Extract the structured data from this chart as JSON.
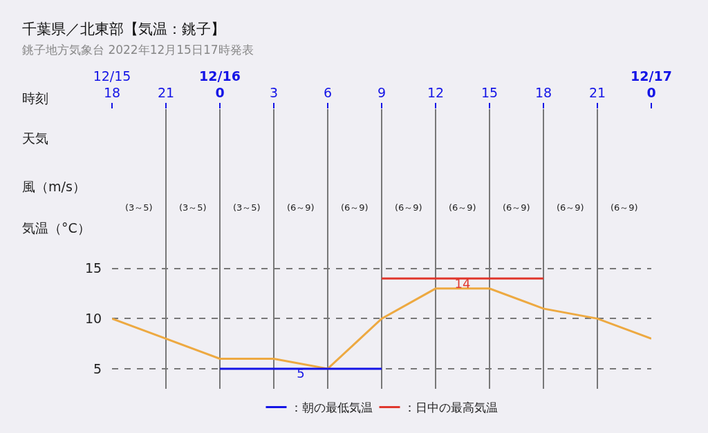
{
  "chart_data": {
    "type": "line",
    "title": "千葉県／北東部【気温：銚子】",
    "subtitle": "銚子地方気象台 2022年12月15日17時発表",
    "ylabel": "気温（°C）",
    "x": [
      "2022-12-15T18:00",
      "2022-12-15T21:00",
      "2022-12-16T00:00",
      "2022-12-16T03:00",
      "2022-12-16T06:00",
      "2022-12-16T09:00",
      "2022-12-16T12:00",
      "2022-12-16T15:00",
      "2022-12-16T18:00",
      "2022-12-16T21:00",
      "2022-12-17T00:00"
    ],
    "series": [
      {
        "color": "#eda941",
        "values": [
          10,
          8,
          6,
          6,
          5,
          10,
          13,
          13,
          11,
          10,
          8
        ]
      },
      {
        "name": "：朝の最低気温",
        "color": "#1414e6",
        "x": [
          "2022-12-16T00:00",
          "2022-12-16T04:30",
          "2022-12-16T09:00"
        ],
        "values": [
          5,
          5,
          5
        ],
        "value_labels": [
          null,
          "5",
          null
        ]
      },
      {
        "name": "：日中の最高気温",
        "color": "#e0382e",
        "x": [
          "2022-12-16T09:00",
          "2022-12-16T13:30",
          "2022-12-16T18:00"
        ],
        "values": [
          14,
          14,
          14
        ],
        "value_labels": [
          null,
          "14",
          null
        ]
      }
    ],
    "xlim": [
      "2022-12-15T18:00",
      "2022-12-17T00:00"
    ],
    "xticks": [
      {
        "value": "2022-12-15T18:00",
        "label": "12/15\n18"
      },
      {
        "value": "2022-12-15T21:00",
        "label": "21"
      },
      {
        "value": "2022-12-16T00:00",
        "label": "12/16\n0"
      },
      {
        "value": "2022-12-16T03:00",
        "label": "3"
      },
      {
        "value": "2022-12-16T06:00",
        "label": "6"
      },
      {
        "value": "2022-12-16T09:00",
        "label": "9"
      },
      {
        "value": "2022-12-16T12:00",
        "label": "12"
      },
      {
        "value": "2022-12-16T15:00",
        "label": "15"
      },
      {
        "value": "2022-12-16T18:00",
        "label": "18"
      },
      {
        "value": "2022-12-16T21:00",
        "label": "21"
      },
      {
        "value": "2022-12-17T00:00",
        "label": "12/17\n0"
      }
    ],
    "ylim": [
      3,
      30.9
    ],
    "yticks": [
      5,
      10,
      15
    ],
    "grid": true,
    "legend": "bottom",
    "marker": "none",
    "line_style": "solid",
    "annotations": [
      "時刻",
      "天気",
      "風（m/s）",
      "(3～5)",
      "(3～5)",
      "(3～5)",
      "(6～9)",
      "(6～9)",
      "(6～9)",
      "(6～9)",
      "(6～9)",
      "(6～9)",
      "(6～9)"
    ]
  }
}
